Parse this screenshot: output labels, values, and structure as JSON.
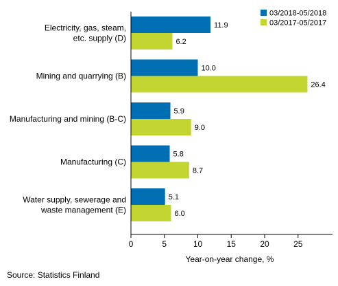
{
  "chart_data": {
    "type": "bar",
    "orientation": "horizontal",
    "categories": [
      [
        "Electricity, gas, steam,",
        "etc. supply (D)"
      ],
      [
        "Mining and quarrying (B)"
      ],
      [
        "Manufacturing and mining (B-C)"
      ],
      [
        "Manufacturing (C)"
      ],
      [
        "Water supply, sewerage and",
        "waste management (E)"
      ]
    ],
    "series": [
      {
        "name": "03/2018-05/2018",
        "color": "#006eb3",
        "values": [
          11.9,
          10.0,
          5.9,
          5.8,
          5.1
        ],
        "labels": [
          "11.9",
          "10.0",
          "5.9",
          "5.8",
          "5.1"
        ]
      },
      {
        "name": "03/2017-05/2017",
        "color": "#c2d531",
        "values": [
          6.2,
          26.4,
          9.0,
          8.7,
          6.0
        ],
        "labels": [
          "6.2",
          "26.4",
          "9.0",
          "8.7",
          "6.0"
        ]
      }
    ],
    "xlabel": "Year-on-year change, %",
    "xlim": [
      0,
      30
    ],
    "xticks": [
      0,
      5,
      10,
      15,
      20,
      25
    ],
    "tick_labels": [
      "0",
      "5",
      "10",
      "15",
      "20",
      "25"
    ],
    "grid": false,
    "legend_position": "top-right"
  },
  "source": "Source: Statistics Finland"
}
